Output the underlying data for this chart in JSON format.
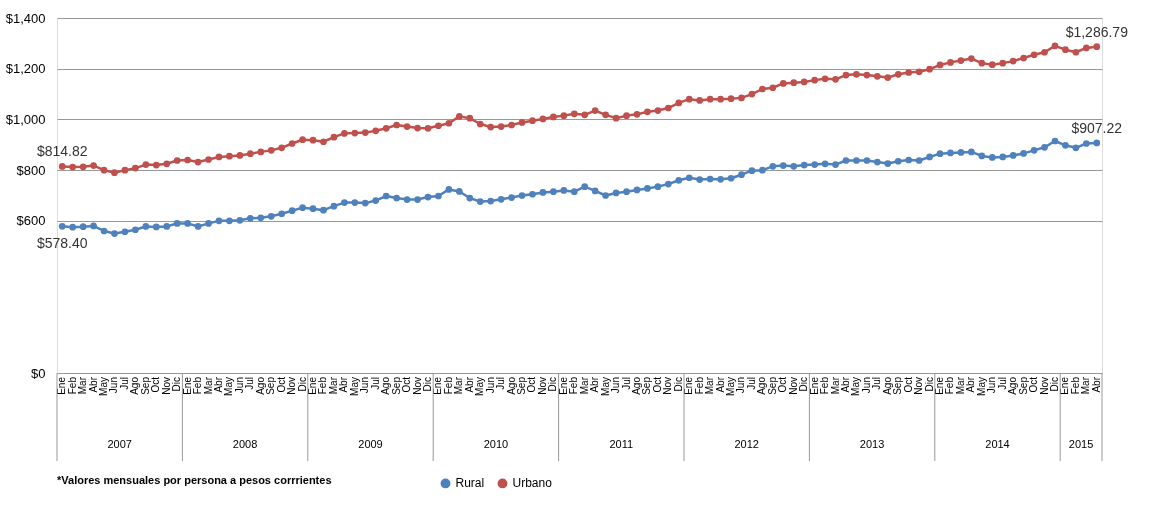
{
  "chart_data": {
    "type": "line",
    "categories": [
      "Ene",
      "Feb",
      "Mar",
      "Abr",
      "May",
      "Jun",
      "Jul",
      "Ago",
      "Sep",
      "Oct",
      "Nov",
      "Dic",
      "Ene",
      "Feb",
      "Mar",
      "Abr",
      "May",
      "Jun",
      "Jul",
      "Ago",
      "Sep",
      "Oct",
      "Nov",
      "Dic",
      "Ene",
      "Feb",
      "Mar",
      "Abr",
      "May",
      "Jun",
      "Jul",
      "Ago",
      "Sep",
      "Oct",
      "Nov",
      "Dic",
      "Ene",
      "Feb",
      "Mar",
      "Abr",
      "May",
      "Jun",
      "Jul",
      "Ago",
      "Sep",
      "Oct",
      "Nov",
      "Dic",
      "Ene",
      "Feb",
      "Mar",
      "Abr",
      "May",
      "Jun",
      "Jul",
      "Ago",
      "Sep",
      "Oct",
      "Nov",
      "Dic",
      "Ene",
      "Feb",
      "Mar",
      "Abr",
      "May",
      "Jun",
      "Jul",
      "Ago",
      "Sep",
      "Oct",
      "Nov",
      "Dic",
      "Ene",
      "Feb",
      "Mar",
      "Abr",
      "May",
      "Jun",
      "Jul",
      "Ago",
      "Sep",
      "Oct",
      "Nov",
      "Dic",
      "Ene",
      "Feb",
      "Mar",
      "Abr",
      "May",
      "Jun",
      "Jul",
      "Ago",
      "Sep",
      "Oct",
      "Nov",
      "Dic",
      "Ene",
      "Feb",
      "Mar",
      "Abr"
    ],
    "series": [
      {
        "name": "Rural",
        "color": "#4f81bd",
        "values": [
          578.4,
          575,
          577,
          580,
          560,
          550,
          557,
          565,
          578,
          576,
          578,
          590,
          590,
          578,
          590,
          600,
          600,
          602,
          610,
          612,
          618,
          628,
          640,
          652,
          648,
          642,
          658,
          672,
          672,
          670,
          680,
          698,
          690,
          684,
          684,
          694,
          698,
          724,
          716,
          690,
          676,
          678,
          685,
          692,
          700,
          705,
          712,
          715,
          720,
          715,
          735,
          718,
          700,
          710,
          715,
          722,
          728,
          735,
          745,
          760,
          770,
          763,
          765,
          764,
          768,
          782,
          798,
          800,
          815,
          818,
          815,
          820,
          822,
          825,
          822,
          838,
          838,
          838,
          832,
          826,
          835,
          840,
          838,
          852,
          865,
          868,
          870,
          872,
          856,
          850,
          852,
          858,
          866,
          878,
          890,
          915,
          898,
          888,
          905,
          907.22
        ],
        "value_labels": [
          "$578.40",
          null,
          null,
          null,
          null,
          null,
          null,
          null,
          null,
          null,
          null,
          null,
          null,
          null,
          null,
          null,
          null,
          null,
          null,
          null,
          null,
          null,
          null,
          null,
          null,
          null,
          null,
          null,
          null,
          null,
          null,
          null,
          null,
          null,
          null,
          null,
          null,
          null,
          null,
          null,
          null,
          null,
          null,
          null,
          null,
          null,
          null,
          null,
          null,
          null,
          null,
          null,
          null,
          null,
          null,
          null,
          null,
          null,
          null,
          null,
          null,
          null,
          null,
          null,
          null,
          null,
          null,
          null,
          null,
          null,
          null,
          null,
          null,
          null,
          null,
          null,
          null,
          null,
          null,
          null,
          null,
          null,
          null,
          null,
          null,
          null,
          null,
          null,
          null,
          null,
          null,
          null,
          null,
          null,
          null,
          null,
          null,
          null,
          null,
          "$907.22"
        ]
      },
      {
        "name": "Urbano",
        "color": "#c0504d",
        "values": [
          814.82,
          812,
          813,
          818,
          800,
          790,
          800,
          808,
          822,
          820,
          825,
          838,
          840,
          832,
          842,
          852,
          855,
          858,
          865,
          872,
          878,
          888,
          905,
          920,
          918,
          912,
          930,
          945,
          946,
          948,
          955,
          965,
          978,
          972,
          966,
          965,
          975,
          985,
          1012,
          1005,
          982,
          970,
          972,
          978,
          988,
          995,
          1002,
          1010,
          1015,
          1022,
          1018,
          1035,
          1018,
          1005,
          1015,
          1020,
          1030,
          1035,
          1045,
          1065,
          1080,
          1075,
          1080,
          1080,
          1082,
          1085,
          1100,
          1120,
          1125,
          1142,
          1145,
          1148,
          1155,
          1160,
          1158,
          1175,
          1178,
          1175,
          1170,
          1165,
          1178,
          1185,
          1188,
          1198,
          1215,
          1225,
          1232,
          1240,
          1222,
          1216,
          1222,
          1230,
          1242,
          1255,
          1265,
          1290,
          1275,
          1265,
          1282,
          1286.79
        ],
        "value_labels": [
          "$814.82",
          null,
          null,
          null,
          null,
          null,
          null,
          null,
          null,
          null,
          null,
          null,
          null,
          null,
          null,
          null,
          null,
          null,
          null,
          null,
          null,
          null,
          null,
          null,
          null,
          null,
          null,
          null,
          null,
          null,
          null,
          null,
          null,
          null,
          null,
          null,
          null,
          null,
          null,
          null,
          null,
          null,
          null,
          null,
          null,
          null,
          null,
          null,
          null,
          null,
          null,
          null,
          null,
          null,
          null,
          null,
          null,
          null,
          null,
          null,
          null,
          null,
          null,
          null,
          null,
          null,
          null,
          null,
          null,
          null,
          null,
          null,
          null,
          null,
          null,
          null,
          null,
          null,
          null,
          null,
          null,
          null,
          null,
          null,
          null,
          null,
          null,
          null,
          null,
          null,
          null,
          null,
          null,
          null,
          null,
          null,
          null,
          null,
          null,
          "$1,286.79"
        ]
      }
    ],
    "ylim": [
      0,
      1400
    ],
    "yticks": [
      {
        "value": 0,
        "label": "$0"
      },
      {
        "value": 600,
        "label": "$600"
      },
      {
        "value": 800,
        "label": "$800"
      },
      {
        "value": 1000,
        "label": "$1,000"
      },
      {
        "value": 1200,
        "label": "$1,200"
      },
      {
        "value": 1400,
        "label": "$1,400"
      }
    ],
    "grid": "y",
    "legend": "bottom",
    "marker": "circle",
    "annotations": [
      "2007",
      "2008",
      "2009",
      "2010",
      "2011",
      "2012",
      "2013",
      "2014",
      "2015",
      "*Valores mensuales por persona a pesos corrrientes"
    ]
  }
}
